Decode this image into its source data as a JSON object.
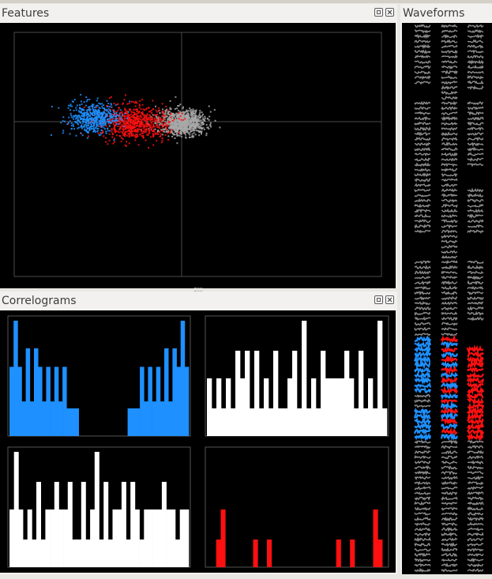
{
  "features": {
    "title": "Features",
    "clusters": [
      {
        "color": "#1e90ff",
        "name": "blue"
      },
      {
        "color": "#ff1010",
        "name": "red"
      },
      {
        "color": "#a8a8a8",
        "name": "gray"
      }
    ]
  },
  "correlograms": {
    "title": "Correlograms",
    "panels": [
      {
        "color": "#1e90ff",
        "bars": [
          0.6,
          1.0,
          0.6,
          0.3,
          0.76,
          0.3,
          0.76,
          0.6,
          0.3,
          0.6,
          0.3,
          0.6,
          0.3,
          0.6,
          0.24,
          0.24,
          0.24,
          0,
          0,
          0,
          0,
          0,
          0,
          0,
          0,
          0,
          0,
          0,
          0,
          0.24,
          0.24,
          0.24,
          0.6,
          0.3,
          0.6,
          0.3,
          0.6,
          0.3,
          0.76,
          0.3,
          0.76,
          0.6,
          1.0,
          0.6
        ]
      },
      {
        "color": "#ffffff",
        "bars": [
          0.5,
          0.24,
          0.5,
          0.24,
          0.5,
          0.24,
          0.74,
          0.5,
          0.74,
          0.24,
          0.74,
          0.24,
          0.5,
          0.24,
          0.74,
          0.24,
          0.24,
          0.5,
          0.74,
          0.24,
          1.0,
          0.24,
          0.5,
          0.24,
          0.74,
          0.5,
          0.5,
          0.5,
          0.5,
          0.74,
          0.5,
          0.24,
          0.74,
          0.24,
          0.5,
          0.24,
          1.0,
          0.24
        ]
      },
      {
        "color": "#ffffff",
        "bars": [
          0.5,
          1.0,
          0.5,
          0.24,
          0.5,
          0.24,
          0.74,
          0.24,
          0.5,
          0.5,
          0.74,
          0.5,
          0.5,
          0.74,
          0.24,
          0.24,
          0.74,
          0.24,
          0.5,
          1.0,
          0.24,
          0.74,
          0.24,
          0.5,
          0.5,
          0.74,
          0.24,
          0.74,
          0.5,
          0.24,
          0.5,
          0.5,
          0.5,
          0.5,
          0.74,
          0.5,
          0.5,
          0.24,
          0.5,
          0.5
        ]
      },
      {
        "color": "#ff1010",
        "bars": [
          0,
          0,
          0.24,
          0.5,
          0,
          0,
          0,
          0,
          0,
          0,
          0.24,
          0,
          0,
          0.24,
          0,
          0,
          0,
          0,
          0,
          0,
          0,
          0,
          0,
          0,
          0,
          0,
          0,
          0,
          0.24,
          0,
          0,
          0.24,
          0,
          0,
          0,
          0,
          0.5,
          0.24,
          0
        ]
      }
    ]
  },
  "waveforms": {
    "title": "Waveforms",
    "gray_color": "#8c8c8c",
    "blue_color": "#1e90ff",
    "red_color": "#ff1010"
  }
}
